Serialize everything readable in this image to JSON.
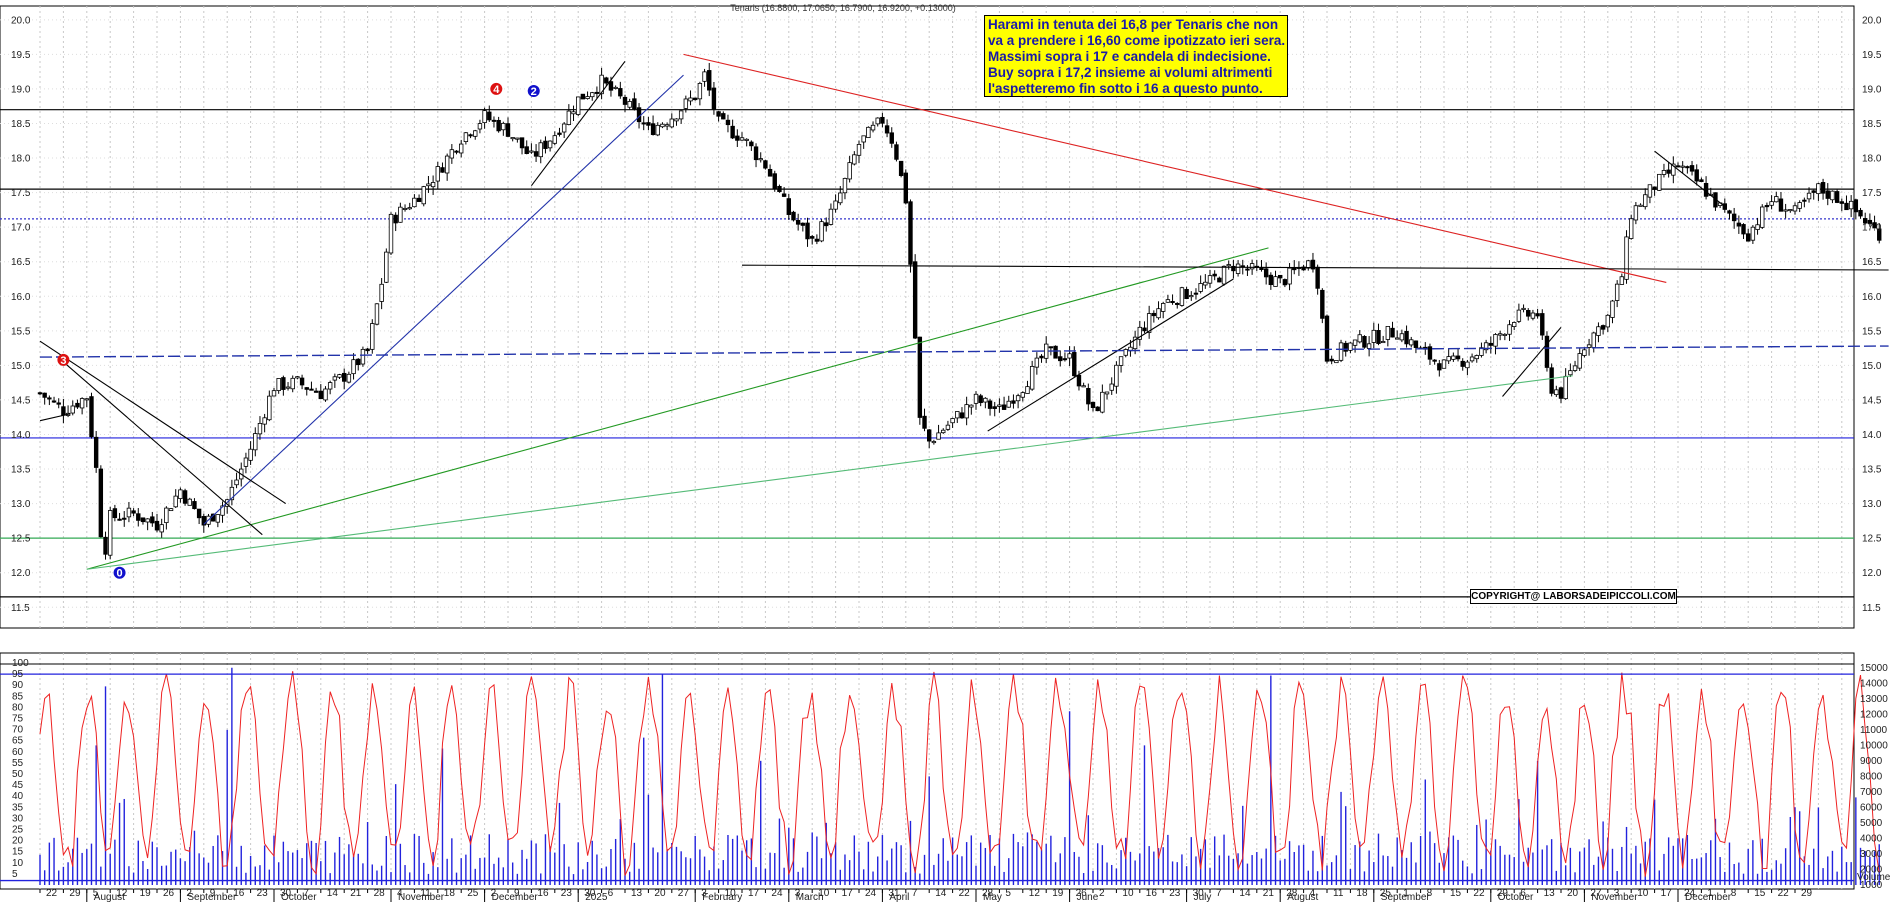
{
  "chart_data": [
    {
      "type": "candlestick",
      "title": "Tenaris (16.8800, 17.0650, 16.7900, 16.9200, +0.13000)",
      "ylim": [
        11.2,
        20.2
      ],
      "y_ticks": [
        "11.5",
        "12.0",
        "12.5",
        "13.0",
        "13.5",
        "14.0",
        "14.5",
        "15.0",
        "15.5",
        "16.0",
        "16.5",
        "17.0",
        "17.5",
        "18.0",
        "18.5",
        "19.0",
        "19.5",
        "20.0"
      ],
      "x_day_labels": [
        "22",
        "29",
        "5",
        "12",
        "19",
        "26",
        "2",
        "9",
        "16",
        "23",
        "30",
        "7",
        "14",
        "21",
        "28",
        "4",
        "11",
        "18",
        "25",
        "2",
        "9",
        "16",
        "23",
        "30",
        "6",
        "13",
        "20",
        "27",
        "3",
        "10",
        "17",
        "24",
        "3",
        "10",
        "17",
        "24",
        "31",
        "7",
        "14",
        "22",
        "28",
        "5",
        "12",
        "19",
        "26",
        "2",
        "10",
        "16",
        "23",
        "30",
        "7",
        "14",
        "21",
        "28",
        "4",
        "11",
        "18",
        "25",
        "1",
        "8",
        "15",
        "22",
        "29",
        "6",
        "13",
        "20",
        "27",
        "3",
        "10",
        "17",
        "24",
        "1",
        "8",
        "15",
        "22",
        "29"
      ],
      "x_month_labels": [
        {
          "label": "August",
          "day_index": 2
        },
        {
          "label": "September",
          "day_index": 6
        },
        {
          "label": "October",
          "day_index": 10
        },
        {
          "label": "November",
          "day_index": 15
        },
        {
          "label": "December",
          "day_index": 19
        },
        {
          "label": "2025",
          "day_index": 23
        },
        {
          "label": "February",
          "day_index": 28
        },
        {
          "label": "March",
          "day_index": 32
        },
        {
          "label": "April",
          "day_index": 36
        },
        {
          "label": "May",
          "day_index": 40
        },
        {
          "label": "June",
          "day_index": 44
        },
        {
          "label": "July",
          "day_index": 49
        },
        {
          "label": "August",
          "day_index": 53
        },
        {
          "label": "September",
          "day_index": 57
        },
        {
          "label": "October",
          "day_index": 62
        },
        {
          "label": "November",
          "day_index": 66
        },
        {
          "label": "December",
          "day_index": 70
        }
      ],
      "close_anchors": [
        [
          0,
          14.6
        ],
        [
          1,
          14.35
        ],
        [
          2,
          14.55
        ],
        [
          2.4,
          13.5
        ],
        [
          2.7,
          12.15
        ],
        [
          3,
          12.8
        ],
        [
          4,
          12.85
        ],
        [
          5,
          12.7
        ],
        [
          6,
          13.2
        ],
        [
          7,
          12.7
        ],
        [
          8,
          13.05
        ],
        [
          9,
          13.8
        ],
        [
          10,
          14.7
        ],
        [
          11,
          14.75
        ],
        [
          12,
          14.6
        ],
        [
          13,
          14.85
        ],
        [
          14,
          15.2
        ],
        [
          14.6,
          16.2
        ],
        [
          15,
          17.1
        ],
        [
          16,
          17.4
        ],
        [
          17,
          17.8
        ],
        [
          18,
          18.3
        ],
        [
          19,
          18.6
        ],
        [
          20,
          18.4
        ],
        [
          21,
          18.0
        ],
        [
          22,
          18.35
        ],
        [
          23,
          18.85
        ],
        [
          24,
          19.1
        ],
        [
          25,
          18.8
        ],
        [
          26,
          18.4
        ],
        [
          27,
          18.6
        ],
        [
          28,
          18.9
        ],
        [
          28.4,
          19.2
        ],
        [
          29,
          18.5
        ],
        [
          30,
          18.3
        ],
        [
          31,
          17.9
        ],
        [
          32,
          17.2
        ],
        [
          33,
          16.8
        ],
        [
          34,
          17.3
        ],
        [
          35,
          18.2
        ],
        [
          36,
          18.55
        ],
        [
          36.5,
          18.2
        ],
        [
          37,
          17.4
        ],
        [
          37.3,
          16.0
        ],
        [
          37.6,
          14.2
        ],
        [
          38,
          13.9
        ],
        [
          39,
          14.2
        ],
        [
          40,
          14.5
        ],
        [
          41,
          14.35
        ],
        [
          42,
          14.7
        ],
        [
          43,
          15.2
        ],
        [
          44,
          15.1
        ],
        [
          45,
          14.3
        ],
        [
          46,
          14.9
        ],
        [
          47,
          15.5
        ],
        [
          48,
          15.9
        ],
        [
          49,
          16.05
        ],
        [
          50,
          16.2
        ],
        [
          51,
          16.45
        ],
        [
          52,
          16.35
        ],
        [
          53,
          16.2
        ],
        [
          54,
          16.45
        ],
        [
          54.5,
          16.5
        ],
        [
          55,
          15.1
        ],
        [
          56,
          15.3
        ],
        [
          57,
          15.4
        ],
        [
          58,
          15.5
        ],
        [
          59,
          15.2
        ],
        [
          60,
          15.0
        ],
        [
          61,
          15.1
        ],
        [
          62,
          15.3
        ],
        [
          63,
          15.7
        ],
        [
          64,
          15.75
        ],
        [
          64.5,
          14.7
        ],
        [
          65,
          14.6
        ],
        [
          66,
          15.3
        ],
        [
          67,
          15.7
        ],
        [
          67.6,
          16.3
        ],
        [
          68,
          17.2
        ],
        [
          69,
          17.6
        ],
        [
          70,
          17.9
        ],
        [
          71,
          17.6
        ],
        [
          72,
          17.2
        ],
        [
          73,
          16.9
        ],
        [
          74,
          17.4
        ],
        [
          75,
          17.2
        ],
        [
          76,
          17.55
        ],
        [
          77,
          17.4
        ],
        [
          78,
          17.1
        ],
        [
          78.5,
          16.92
        ]
      ],
      "horizontal_lines": [
        {
          "y": 18.7,
          "color": "#000000",
          "style": "solid"
        },
        {
          "y": 17.55,
          "color": "#000000",
          "style": "solid"
        },
        {
          "y": 17.12,
          "color": "#3333cc",
          "style": "dotted"
        },
        {
          "y": 13.95,
          "color": "#2222dd",
          "style": "solid"
        },
        {
          "y": 12.5,
          "color": "#33aa55",
          "style": "solid"
        },
        {
          "y": 11.65,
          "color": "#000000",
          "style": "solid"
        }
      ],
      "trend_lines": [
        {
          "x1": 2,
          "y1": 12.05,
          "x2": 52.5,
          "y2": 16.7,
          "color": "#229922"
        },
        {
          "x1": 2,
          "y1": 12.05,
          "x2": 65.5,
          "y2": 14.85,
          "color": "#55bb77"
        },
        {
          "x1": 7,
          "y1": 12.7,
          "x2": 27.5,
          "y2": 19.2,
          "color": "#2233aa"
        },
        {
          "x1": 27.5,
          "y1": 19.5,
          "x2": 69.5,
          "y2": 16.2,
          "color": "#dd2222"
        },
        {
          "x1": 0,
          "y1": 15.35,
          "x2": 10.5,
          "y2": 13.0,
          "color": "#000000"
        },
        {
          "x1": 1,
          "y1": 15.05,
          "x2": 9.5,
          "y2": 12.55,
          "color": "#000000"
        },
        {
          "x1": 21,
          "y1": 17.6,
          "x2": 25,
          "y2": 19.4,
          "color": "#000000"
        },
        {
          "x1": 40.5,
          "y1": 14.05,
          "x2": 51,
          "y2": 16.25,
          "color": "#000000"
        },
        {
          "x1": 62.5,
          "y1": 14.55,
          "x2": 65,
          "y2": 15.55,
          "color": "#000000"
        },
        {
          "x1": 69,
          "y1": 18.1,
          "x2": 72,
          "y2": 17.3,
          "color": "#000000"
        },
        {
          "x1": 30,
          "y1": 16.45,
          "x2": 79,
          "y2": 16.38,
          "color": "#000000"
        },
        {
          "x1": 0,
          "y1": 15.12,
          "x2": 79,
          "y2": 15.28,
          "color": "#2233aa",
          "style": "dashed"
        },
        {
          "x1": 0,
          "y1": 14.2,
          "x2": 1.3,
          "y2": 14.3,
          "color": "#000000"
        }
      ],
      "markers": [
        {
          "label": "0",
          "x": 3.4,
          "y": 12.0,
          "color": "#1111cc"
        },
        {
          "label": "3",
          "x": 1.0,
          "y": 15.08,
          "color": "#dd1111"
        },
        {
          "label": "4",
          "x": 19.5,
          "y": 19.0,
          "color": "#dd1111"
        },
        {
          "label": "2",
          "x": 21.1,
          "y": 18.97,
          "color": "#1111cc"
        }
      ]
    },
    {
      "type": "line+bar",
      "ylim_oscillator": [
        0,
        100
      ],
      "y_ticks_oscillator": [
        "5",
        "10",
        "15",
        "20",
        "25",
        "30",
        "35",
        "40",
        "45",
        "50",
        "55",
        "60",
        "65",
        "70",
        "75",
        "80",
        "85",
        "90",
        "95",
        "100"
      ],
      "ylim_volume": [
        1000,
        15500
      ],
      "y_ticks_volume": [
        "1000",
        "2000",
        "3000",
        "4000",
        "5000",
        "6000",
        "7000",
        "8000",
        "9000",
        "10000",
        "11000",
        "12000",
        "13000",
        "14000",
        "15000"
      ],
      "right_axis_label": "Volume",
      "reference_lines": [
        {
          "value": 95,
          "color": "#2222dd"
        },
        {
          "value": 2,
          "color": "#2222dd"
        }
      ],
      "oscillator_color": "#ee2222",
      "volume_color": "#2222dd"
    }
  ],
  "annotation": {
    "lines": [
      "Harami in tenuta dei 16,8 per Tenaris che non",
      "va a prendere i 16,60 come ipotizzato ieri sera.",
      "Massimi sopra i 17 e candela di indecisione.",
      "Buy sopra i 17,2 insieme ai volumi altrimenti",
      "l'aspetteremo  fin sotto i 16 a questo punto."
    ]
  },
  "copyright": "COPYRIGHT@ LABORSADEIPICCOLI.COM"
}
